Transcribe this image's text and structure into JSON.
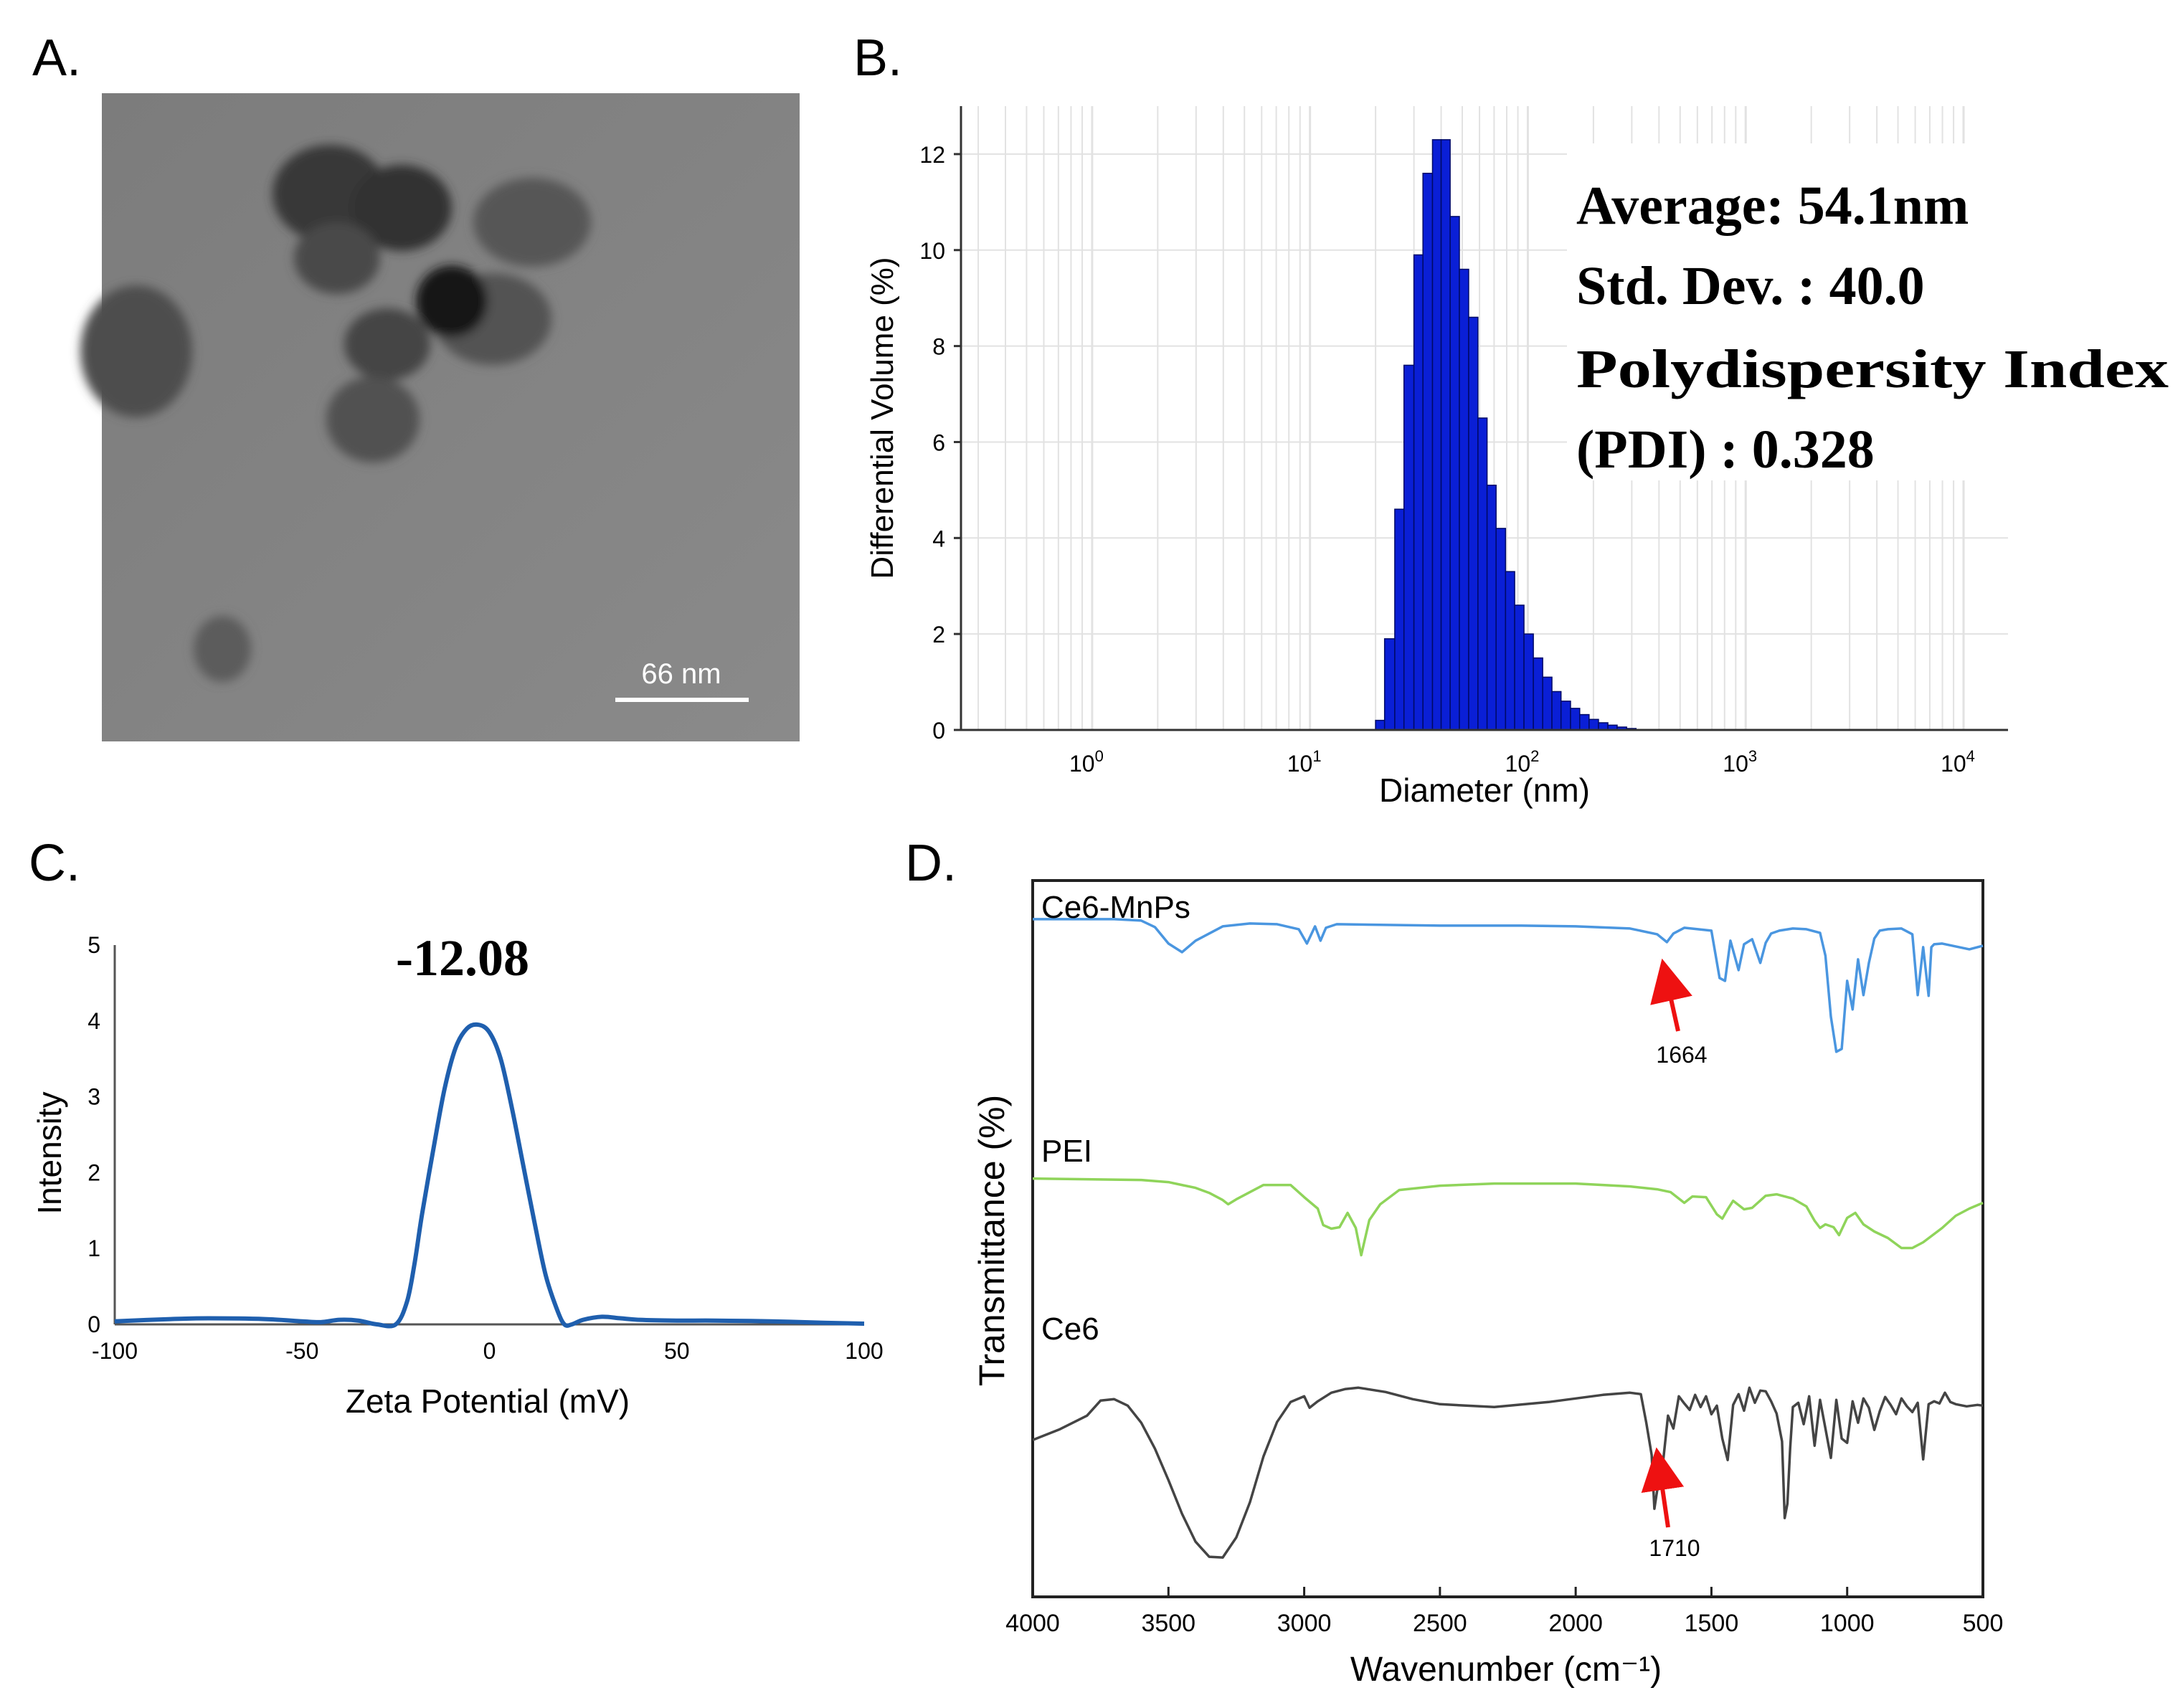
{
  "panels": {
    "a": {
      "label": "A.",
      "scale_bar_text": "66 nm"
    },
    "b": {
      "label": "B.",
      "stats": {
        "average": "Average: 54.1nm",
        "std_dev": "Std. Dev. : 40.0",
        "pdi_line1": "Polydispersity Index",
        "pdi_line2": "(PDI) : 0.328"
      }
    },
    "c": {
      "label": "C.",
      "peak_label": "-12.08"
    },
    "d": {
      "label": "D.",
      "arrow_1664": "1664",
      "arrow_1710": "1710"
    }
  },
  "colors": {
    "bar_fill": "#0a1fd6",
    "bar_edge": "#000a66",
    "zeta_line": "#1f5fae",
    "ce6_mnps": "#4a96e0",
    "pei": "#8fd45a",
    "ce6": "#444444",
    "arrow": "#ee1111"
  },
  "chart_data": [
    {
      "id": "B",
      "type": "bar",
      "title": "",
      "xlabel": "Diameter (nm)",
      "ylabel": "Differential Volume (%)",
      "x_scale": "log",
      "xlim": [
        0.25,
        16000
      ],
      "ylim": [
        0,
        13
      ],
      "x_ticks": [
        {
          "value": 1,
          "base": "10",
          "exp": "0"
        },
        {
          "value": 10,
          "base": "10",
          "exp": "1"
        },
        {
          "value": 100,
          "base": "10",
          "exp": "2"
        },
        {
          "value": 1000,
          "base": "10",
          "exp": "3"
        },
        {
          "value": 10000,
          "base": "10",
          "exp": "4"
        }
      ],
      "y_ticks": [
        "0",
        "2",
        "4",
        "6",
        "8",
        "10",
        "12"
      ],
      "bins_nm": [
        20,
        22,
        24.5,
        27,
        30,
        33,
        36.5,
        40,
        44,
        48.5,
        53.5,
        59,
        65,
        71.5,
        79,
        87,
        96,
        106,
        117,
        129,
        142,
        157,
        173,
        191,
        211,
        233,
        257,
        284
      ],
      "values": [
        0.2,
        1.9,
        4.6,
        7.6,
        9.9,
        11.6,
        12.3,
        12.3,
        10.7,
        9.6,
        8.6,
        6.5,
        5.1,
        4.2,
        3.3,
        2.6,
        2.0,
        1.5,
        1.1,
        0.8,
        0.6,
        0.45,
        0.32,
        0.22,
        0.15,
        0.1,
        0.06,
        0.03
      ]
    },
    {
      "id": "C",
      "type": "line",
      "title": "",
      "xlabel": "Zeta Potential (mV)",
      "ylabel": "Intensity",
      "xlim": [
        -100,
        100
      ],
      "ylim": [
        0,
        5
      ],
      "x_ticks": [
        "-100",
        "-50",
        "0",
        "50",
        "100"
      ],
      "y_ticks": [
        "0",
        "1",
        "2",
        "3",
        "4",
        "5"
      ],
      "series": [
        {
          "name": "zeta",
          "x": [
            -100,
            -85,
            -75,
            -60,
            -50,
            -45,
            -40,
            -35,
            -30,
            -25,
            -22,
            -20,
            -18,
            -15,
            -12,
            -9,
            -6,
            -3,
            0,
            3,
            6,
            9,
            12,
            15,
            18,
            20,
            22,
            25,
            30,
            35,
            40,
            50,
            60,
            75,
            90,
            100
          ],
          "y": [
            0.04,
            0.07,
            0.08,
            0.07,
            0.04,
            0.03,
            0.06,
            0.05,
            0.0,
            0.0,
            0.3,
            0.8,
            1.45,
            2.3,
            3.1,
            3.65,
            3.9,
            3.95,
            3.85,
            3.5,
            2.85,
            2.1,
            1.35,
            0.65,
            0.2,
            0.0,
            0.0,
            0.06,
            0.1,
            0.08,
            0.06,
            0.05,
            0.05,
            0.04,
            0.02,
            0.01
          ]
        }
      ]
    },
    {
      "id": "D",
      "type": "line",
      "title": "",
      "xlabel": "Wavenumber (cm⁻¹)",
      "ylabel": "Transmittance (%)",
      "xlim": [
        4000,
        500
      ],
      "ylim": [
        0,
        100
      ],
      "x_ticks": [
        "4000",
        "3500",
        "3000",
        "2500",
        "2000",
        "1500",
        "1000",
        "500"
      ],
      "series": [
        {
          "name": "Ce6-MnPs",
          "x": [
            4000,
            3700,
            3600,
            3550,
            3500,
            3450,
            3400,
            3300,
            3200,
            3100,
            3020,
            2990,
            2960,
            2940,
            2920,
            2880,
            2700,
            2500,
            2200,
            2000,
            1800,
            1700,
            1664,
            1640,
            1600,
            1500,
            1470,
            1450,
            1430,
            1400,
            1380,
            1350,
            1320,
            1300,
            1280,
            1250,
            1200,
            1150,
            1100,
            1080,
            1060,
            1040,
            1020,
            1000,
            980,
            960,
            940,
            920,
            900,
            880,
            850,
            800,
            760,
            740,
            720,
            700,
            690,
            680,
            650,
            600,
            550,
            500
          ],
          "y": [
            94.6,
            94.6,
            94.4,
            93.5,
            91.2,
            90.0,
            91.6,
            93.6,
            94.0,
            93.9,
            93.2,
            91.2,
            93.6,
            91.6,
            93.4,
            93.9,
            93.8,
            93.7,
            93.7,
            93.6,
            93.3,
            92.5,
            91.4,
            92.6,
            93.4,
            93.0,
            86.4,
            86.0,
            91.6,
            87.5,
            91.1,
            91.8,
            88.5,
            91.3,
            92.6,
            93.0,
            93.3,
            93.2,
            92.7,
            89.5,
            81.0,
            76.1,
            76.5,
            86.0,
            82.0,
            89.0,
            84.0,
            88.5,
            91.9,
            93.0,
            93.2,
            93.3,
            92.5,
            84.0,
            90.7,
            83.9,
            90.7,
            91.1,
            91.2,
            90.8,
            90.4,
            90.9
          ]
        },
        {
          "name": "PEI",
          "x": [
            4000,
            3800,
            3600,
            3500,
            3400,
            3350,
            3300,
            3280,
            3250,
            3150,
            3050,
            3000,
            2950,
            2930,
            2900,
            2870,
            2840,
            2810,
            2790,
            2760,
            2720,
            2650,
            2500,
            2300,
            2000,
            1800,
            1700,
            1650,
            1600,
            1570,
            1520,
            1480,
            1460,
            1440,
            1420,
            1380,
            1350,
            1300,
            1260,
            1200,
            1150,
            1120,
            1100,
            1080,
            1050,
            1030,
            1000,
            970,
            940,
            900,
            850,
            800,
            760,
            720,
            650,
            600,
            550,
            500
          ],
          "y": [
            58.4,
            58.3,
            58.2,
            57.9,
            57.1,
            56.4,
            55.4,
            54.8,
            55.5,
            57.5,
            57.5,
            55.8,
            54.2,
            51.9,
            51.4,
            51.6,
            53.6,
            51.5,
            47.7,
            52.6,
            54.8,
            56.8,
            57.4,
            57.7,
            57.7,
            57.3,
            56.9,
            56.5,
            55.0,
            55.9,
            55.8,
            53.4,
            52.8,
            54.1,
            55.3,
            54.1,
            54.3,
            56.0,
            56.2,
            55.6,
            54.5,
            52.5,
            51.5,
            52.0,
            51.6,
            50.5,
            52.9,
            53.6,
            52.0,
            51.0,
            50.1,
            48.7,
            48.7,
            49.5,
            51.5,
            53.2,
            54.2,
            55.0
          ]
        },
        {
          "name": "Ce6",
          "x": [
            4000,
            3900,
            3800,
            3750,
            3700,
            3650,
            3600,
            3550,
            3500,
            3450,
            3400,
            3350,
            3300,
            3250,
            3200,
            3150,
            3100,
            3050,
            3000,
            2980,
            2950,
            2900,
            2850,
            2800,
            2700,
            2600,
            2500,
            2300,
            2100,
            1900,
            1800,
            1760,
            1740,
            1720,
            1710,
            1700,
            1690,
            1680,
            1660,
            1640,
            1620,
            1600,
            1580,
            1560,
            1540,
            1520,
            1500,
            1480,
            1460,
            1440,
            1420,
            1400,
            1380,
            1360,
            1340,
            1320,
            1300,
            1280,
            1260,
            1240,
            1230,
            1220,
            1210,
            1200,
            1180,
            1160,
            1140,
            1120,
            1100,
            1080,
            1060,
            1040,
            1020,
            1000,
            980,
            960,
            940,
            920,
            900,
            880,
            860,
            840,
            820,
            800,
            780,
            760,
            740,
            720,
            700,
            680,
            660,
            640,
            620,
            600,
            560,
            520,
            500
          ],
          "y": [
            21.9,
            23.4,
            25.3,
            27.4,
            27.6,
            26.7,
            24.3,
            20.7,
            16.3,
            11.6,
            7.7,
            5.6,
            5.5,
            8.3,
            13.2,
            19.6,
            24.4,
            27.2,
            28.0,
            26.4,
            27.3,
            28.5,
            29.0,
            29.2,
            28.6,
            27.6,
            26.9,
            26.5,
            27.2,
            28.2,
            28.5,
            28.3,
            24.3,
            19.8,
            12.3,
            14.8,
            16.4,
            18.2,
            25.3,
            23.5,
            28.0,
            27.0,
            26.1,
            28.2,
            26.5,
            28.0,
            25.5,
            26.7,
            22.1,
            19.1,
            26.8,
            28.3,
            26.0,
            29.2,
            27.1,
            28.8,
            28.7,
            27.3,
            25.6,
            21.7,
            11.0,
            13.0,
            20.7,
            26.5,
            27.1,
            24.1,
            28.0,
            21.1,
            27.5,
            23.5,
            19.4,
            27.5,
            22.1,
            21.5,
            27.3,
            24.3,
            27.7,
            26.4,
            23.3,
            25.9,
            27.9,
            26.8,
            25.5,
            27.7,
            26.6,
            25.8,
            27.1,
            19.2,
            26.9,
            27.3,
            27.0,
            28.5,
            27.2,
            26.9,
            26.6,
            26.8,
            26.7
          ]
        }
      ]
    }
  ]
}
